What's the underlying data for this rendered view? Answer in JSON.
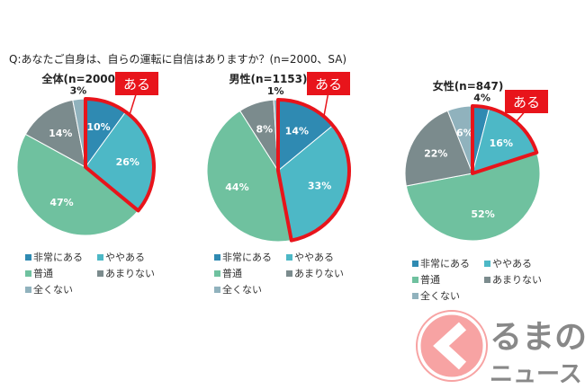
{
  "question": "Q:あなたご自身は、自らの運転に自信はありますか？(n=2000、SA)",
  "callout": "ある",
  "logo_text": [
    "るまの",
    "ニュース"
  ],
  "chart_data": [
    {
      "type": "pie",
      "title": "全体(n=2000)",
      "labels": [
        "非常にある",
        "ややある",
        "普通",
        "あまりない",
        "全くない"
      ],
      "values": [
        10,
        26,
        47,
        14,
        3
      ],
      "highlight": [
        "非常にある",
        "ややある"
      ]
    },
    {
      "type": "pie",
      "title": "男性(n=1153)",
      "labels": [
        "非常にある",
        "ややある",
        "普通",
        "あまりない",
        "全くない"
      ],
      "values": [
        14,
        33,
        44,
        8,
        1
      ],
      "highlight": [
        "非常にある",
        "ややある"
      ]
    },
    {
      "type": "pie",
      "title": "女性(n=847)",
      "labels": [
        "非常にある",
        "ややある",
        "普通",
        "あまりない",
        "全くない"
      ],
      "values": [
        4,
        16,
        52,
        22,
        6
      ],
      "highlight": [
        "非常にある",
        "ややある"
      ]
    }
  ],
  "colors": [
    "#2f8ab2",
    "#4db8c6",
    "#6fc19f",
    "#7b8b8d",
    "#90b2bd"
  ],
  "accent": "#e8141b"
}
